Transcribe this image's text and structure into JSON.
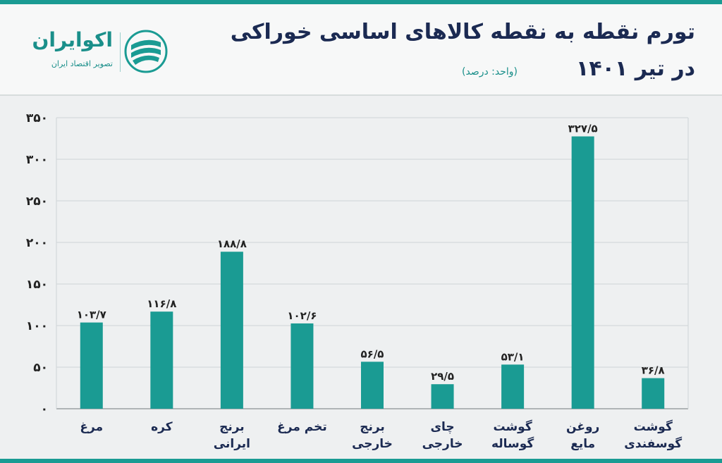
{
  "header": {
    "title_line1": "تورم نقطه به نقطه کالاهای اساسی خوراکی",
    "title_line2": "در تیر ۱۴۰۱",
    "unit": "(واحد: درصد)"
  },
  "logo": {
    "name": "اکوایران",
    "tagline": "تصویر اقتصاد ایران"
  },
  "colors": {
    "bar": "#1a9b93",
    "title": "#1b2a52",
    "accent": "#1a8f8a"
  },
  "chart_data": {
    "type": "bar",
    "categories": [
      [
        "مرغ"
      ],
      [
        "کره"
      ],
      [
        "برنج",
        "ایرانی"
      ],
      [
        "تخم مرغ"
      ],
      [
        "برنج",
        "خارجی"
      ],
      [
        "چای",
        "خارجی"
      ],
      [
        "گوشت",
        "گوساله"
      ],
      [
        "روغن",
        "مایع"
      ],
      [
        "گوشت",
        "گوسفندی"
      ]
    ],
    "values": [
      103.7,
      116.8,
      188.8,
      102.6,
      56.5,
      29.5,
      53.1,
      327.5,
      36.8
    ],
    "value_labels": [
      "۱۰۳/۷",
      "۱۱۶/۸",
      "۱۸۸/۸",
      "۱۰۲/۶",
      "۵۶/۵",
      "۲۹/۵",
      "۵۳/۱",
      "۳۲۷/۵",
      "۳۶/۸"
    ],
    "ylim": [
      0,
      350
    ],
    "yticks": [
      0,
      50,
      100,
      150,
      200,
      250,
      300,
      350
    ],
    "ytick_labels": [
      "۰",
      "۵۰",
      "۱۰۰",
      "۱۵۰",
      "۲۰۰",
      "۲۵۰",
      "۳۰۰",
      "۳۵۰"
    ],
    "grid": true,
    "legend": false
  }
}
